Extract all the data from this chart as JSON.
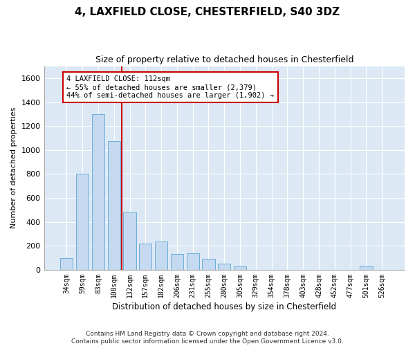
{
  "title": "4, LAXFIELD CLOSE, CHESTERFIELD, S40 3DZ",
  "subtitle": "Size of property relative to detached houses in Chesterfield",
  "xlabel": "Distribution of detached houses by size in Chesterfield",
  "ylabel": "Number of detached properties",
  "bar_color": "#c5d9f0",
  "bar_edge_color": "#6baed6",
  "bg_color": "#dce9f5",
  "grid_color": "#ffffff",
  "annotation_text": "4 LAXFIELD CLOSE: 112sqm\n← 55% of detached houses are smaller (2,379)\n44% of semi-detached houses are larger (1,902) →",
  "categories": [
    "34sqm",
    "59sqm",
    "83sqm",
    "108sqm",
    "132sqm",
    "157sqm",
    "182sqm",
    "206sqm",
    "231sqm",
    "255sqm",
    "280sqm",
    "305sqm",
    "329sqm",
    "354sqm",
    "378sqm",
    "403sqm",
    "428sqm",
    "452sqm",
    "477sqm",
    "501sqm",
    "526sqm"
  ],
  "values": [
    100,
    800,
    1300,
    1075,
    480,
    220,
    235,
    135,
    140,
    90,
    50,
    30,
    0,
    0,
    0,
    0,
    0,
    0,
    0,
    30,
    0
  ],
  "ylim": [
    0,
    1700
  ],
  "yticks": [
    0,
    200,
    400,
    600,
    800,
    1000,
    1200,
    1400,
    1600
  ],
  "footnote": "Contains HM Land Registry data © Crown copyright and database right 2024.\nContains public sector information licensed under the Open Government Licence v3.0.",
  "redline_index": 3.5
}
